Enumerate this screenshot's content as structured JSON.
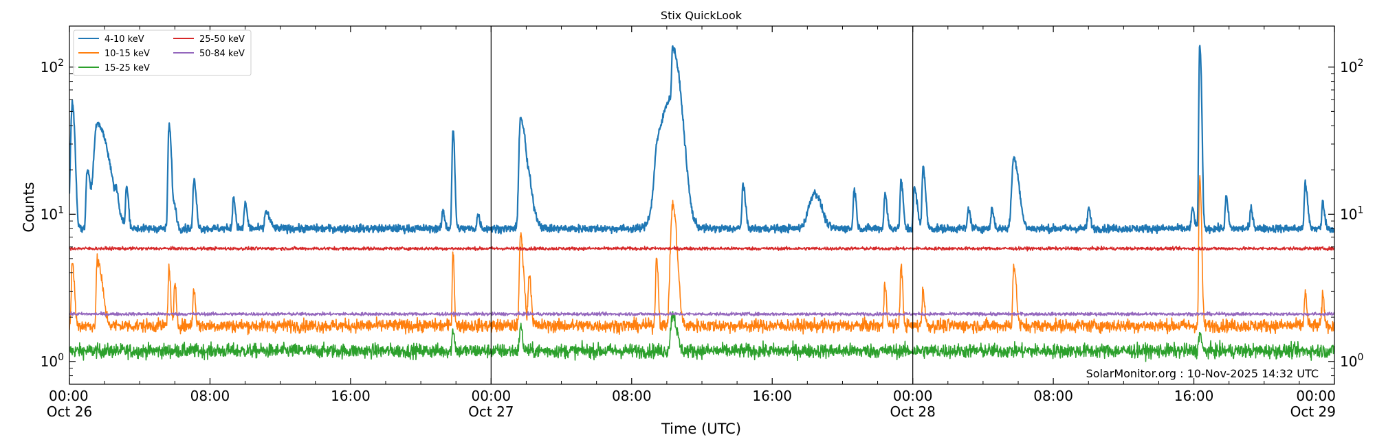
{
  "chart_data": {
    "type": "line",
    "title": "Stix QuickLook",
    "xlabel": "Time (UTC)",
    "ylabel": "Counts",
    "yscale": "log",
    "ylim": [
      0.7,
      190
    ],
    "xlim": [
      "2025-10-26 00:00",
      "2025-10-29 00:00"
    ],
    "grid": false,
    "legend_position": "top-left",
    "credit": "SolarMonitor.org : 10-Nov-2025 14:32 UTC",
    "x_ticks": [
      {
        "time": "2025-10-26 00:00",
        "label": "00:00",
        "sublabel": "Oct 26"
      },
      {
        "time": "2025-10-26 08:00",
        "label": "08:00",
        "sublabel": ""
      },
      {
        "time": "2025-10-26 16:00",
        "label": "16:00",
        "sublabel": ""
      },
      {
        "time": "2025-10-27 00:00",
        "label": "00:00",
        "sublabel": "Oct 27"
      },
      {
        "time": "2025-10-27 08:00",
        "label": "08:00",
        "sublabel": ""
      },
      {
        "time": "2025-10-27 16:00",
        "label": "16:00",
        "sublabel": ""
      },
      {
        "time": "2025-10-28 00:00",
        "label": "00:00",
        "sublabel": "Oct 28"
      },
      {
        "time": "2025-10-28 08:00",
        "label": "08:00",
        "sublabel": ""
      },
      {
        "time": "2025-10-28 16:00",
        "label": "16:00",
        "sublabel": ""
      },
      {
        "time": "2025-10-29 00:00",
        "label": "00:00",
        "sublabel": "Oct 29"
      }
    ],
    "day_boundaries": [
      "2025-10-27 00:00",
      "2025-10-28 00:00"
    ],
    "y_ticks": [
      {
        "value": 1,
        "base": "10",
        "exp": "0"
      },
      {
        "value": 10,
        "base": "10",
        "exp": "1"
      },
      {
        "value": 100,
        "base": "10",
        "exp": "2"
      }
    ],
    "series": [
      {
        "name": "4-10 keV",
        "color": "#1f77b4",
        "baseline": 8.0,
        "noise": 0.06,
        "lw": 2.2,
        "peaks": [
          {
            "time": "2025-10-26 00:10",
            "value": 57,
            "rise": 0.08,
            "decay": 0.12
          },
          {
            "time": "2025-10-26 01:00",
            "value": 19,
            "rise": 0.05,
            "decay": 0.12
          },
          {
            "time": "2025-10-26 01:10",
            "value": 11.5,
            "rise": 0.1,
            "decay": 0.3
          },
          {
            "time": "2025-10-26 01:35",
            "value": 41,
            "rise": 0.15,
            "decay": 0.55
          },
          {
            "time": "2025-10-26 02:40",
            "value": 11,
            "rise": 0.05,
            "decay": 0.1
          },
          {
            "time": "2025-10-26 03:15",
            "value": 15,
            "rise": 0.05,
            "decay": 0.1
          },
          {
            "time": "2025-10-26 05:40",
            "value": 40,
            "rise": 0.05,
            "decay": 0.12
          },
          {
            "time": "2025-10-26 06:00",
            "value": 11,
            "rise": 0.05,
            "decay": 0.1
          },
          {
            "time": "2025-10-26 07:05",
            "value": 17,
            "rise": 0.05,
            "decay": 0.12
          },
          {
            "time": "2025-10-26 09:20",
            "value": 13,
            "rise": 0.05,
            "decay": 0.1
          },
          {
            "time": "2025-10-26 10:00",
            "value": 12,
            "rise": 0.05,
            "decay": 0.1
          },
          {
            "time": "2025-10-26 11:10",
            "value": 10.5,
            "rise": 0.05,
            "decay": 0.2
          },
          {
            "time": "2025-10-26 21:15",
            "value": 10.5,
            "rise": 0.05,
            "decay": 0.1
          },
          {
            "time": "2025-10-26 21:50",
            "value": 37,
            "rise": 0.05,
            "decay": 0.08
          },
          {
            "time": "2025-10-26 23:15",
            "value": 10,
            "rise": 0.05,
            "decay": 0.1
          },
          {
            "time": "2025-10-27 01:40",
            "value": 45,
            "rise": 0.07,
            "decay": 0.28
          },
          {
            "time": "2025-10-27 02:10",
            "value": 12,
            "rise": 0.05,
            "decay": 0.3
          },
          {
            "time": "2025-10-27 09:25",
            "value": 17,
            "rise": 0.1,
            "decay": 0.2
          },
          {
            "time": "2025-10-27 10:10",
            "value": 60,
            "rise": 0.45,
            "decay": 0.5
          },
          {
            "time": "2025-10-27 10:20",
            "value": 88,
            "rise": 0.05,
            "decay": 0.35
          },
          {
            "time": "2025-10-27 14:20",
            "value": 16,
            "rise": 0.05,
            "decay": 0.12
          },
          {
            "time": "2025-10-27 18:25",
            "value": 14,
            "rise": 0.3,
            "decay": 0.35
          },
          {
            "time": "2025-10-27 20:40",
            "value": 15,
            "rise": 0.05,
            "decay": 0.1
          },
          {
            "time": "2025-10-27 22:25",
            "value": 14,
            "rise": 0.05,
            "decay": 0.1
          },
          {
            "time": "2025-10-27 23:20",
            "value": 17,
            "rise": 0.05,
            "decay": 0.1
          },
          {
            "time": "2025-10-28 00:05",
            "value": 15,
            "rise": 0.05,
            "decay": 0.15
          },
          {
            "time": "2025-10-28 00:35",
            "value": 21,
            "rise": 0.05,
            "decay": 0.12
          },
          {
            "time": "2025-10-28 03:10",
            "value": 11,
            "rise": 0.05,
            "decay": 0.1
          },
          {
            "time": "2025-10-28 04:30",
            "value": 11,
            "rise": 0.05,
            "decay": 0.1
          },
          {
            "time": "2025-10-28 05:45",
            "value": 24,
            "rise": 0.1,
            "decay": 0.25
          },
          {
            "time": "2025-10-28 10:00",
            "value": 11,
            "rise": 0.05,
            "decay": 0.1
          },
          {
            "time": "2025-10-28 15:55",
            "value": 11,
            "rise": 0.05,
            "decay": 0.1
          },
          {
            "time": "2025-10-28 16:20",
            "value": 140,
            "rise": 0.04,
            "decay": 0.08
          },
          {
            "time": "2025-10-28 17:50",
            "value": 13,
            "rise": 0.05,
            "decay": 0.1
          },
          {
            "time": "2025-10-28 19:15",
            "value": 11,
            "rise": 0.05,
            "decay": 0.1
          },
          {
            "time": "2025-10-28 22:20",
            "value": 16,
            "rise": 0.05,
            "decay": 0.12
          },
          {
            "time": "2025-10-28 23:20",
            "value": 12,
            "rise": 0.05,
            "decay": 0.1
          }
        ]
      },
      {
        "name": "10-15 keV",
        "color": "#ff7f0e",
        "baseline": 1.75,
        "noise": 0.1,
        "lw": 1.6,
        "peaks": [
          {
            "time": "2025-10-26 00:10",
            "value": 4.7,
            "rise": 0.05,
            "decay": 0.1
          },
          {
            "time": "2025-10-26 01:35",
            "value": 4.8,
            "rise": 0.05,
            "decay": 0.25
          },
          {
            "time": "2025-10-26 05:40",
            "value": 4.2,
            "rise": 0.05,
            "decay": 0.08
          },
          {
            "time": "2025-10-26 06:00",
            "value": 3.2,
            "rise": 0.05,
            "decay": 0.08
          },
          {
            "time": "2025-10-26 07:05",
            "value": 3.1,
            "rise": 0.05,
            "decay": 0.08
          },
          {
            "time": "2025-10-26 21:50",
            "value": 5.5,
            "rise": 0.04,
            "decay": 0.06
          },
          {
            "time": "2025-10-27 01:40",
            "value": 7.2,
            "rise": 0.05,
            "decay": 0.15
          },
          {
            "time": "2025-10-27 02:10",
            "value": 4.0,
            "rise": 0.05,
            "decay": 0.1
          },
          {
            "time": "2025-10-27 09:25",
            "value": 5.2,
            "rise": 0.05,
            "decay": 0.08
          },
          {
            "time": "2025-10-27 10:20",
            "value": 11.5,
            "rise": 0.1,
            "decay": 0.2
          },
          {
            "time": "2025-10-27 22:25",
            "value": 3.4,
            "rise": 0.05,
            "decay": 0.08
          },
          {
            "time": "2025-10-27 23:20",
            "value": 4.4,
            "rise": 0.05,
            "decay": 0.08
          },
          {
            "time": "2025-10-28 00:35",
            "value": 3.1,
            "rise": 0.05,
            "decay": 0.08
          },
          {
            "time": "2025-10-28 05:45",
            "value": 4.5,
            "rise": 0.05,
            "decay": 0.12
          },
          {
            "time": "2025-10-28 16:20",
            "value": 17.5,
            "rise": 0.04,
            "decay": 0.08
          },
          {
            "time": "2025-10-28 22:20",
            "value": 2.9,
            "rise": 0.05,
            "decay": 0.08
          },
          {
            "time": "2025-10-28 23:20",
            "value": 2.8,
            "rise": 0.05,
            "decay": 0.08
          }
        ]
      },
      {
        "name": "15-25 keV",
        "color": "#2ca02c",
        "baseline": 1.18,
        "noise": 0.11,
        "lw": 1.6,
        "peaks": [
          {
            "time": "2025-10-26 21:50",
            "value": 1.65,
            "rise": 0.05,
            "decay": 0.08
          },
          {
            "time": "2025-10-27 01:40",
            "value": 1.75,
            "rise": 0.05,
            "decay": 0.1
          },
          {
            "time": "2025-10-27 10:20",
            "value": 2.1,
            "rise": 0.1,
            "decay": 0.2
          },
          {
            "time": "2025-10-28 16:20",
            "value": 1.6,
            "rise": 0.05,
            "decay": 0.08
          }
        ]
      },
      {
        "name": "25-50 keV",
        "color": "#d62728",
        "baseline": 5.85,
        "noise": 0.025,
        "lw": 1.6,
        "peaks": []
      },
      {
        "name": "50-84 keV",
        "color": "#9467bd",
        "baseline": 2.1,
        "noise": 0.025,
        "lw": 1.6,
        "peaks": []
      }
    ]
  }
}
